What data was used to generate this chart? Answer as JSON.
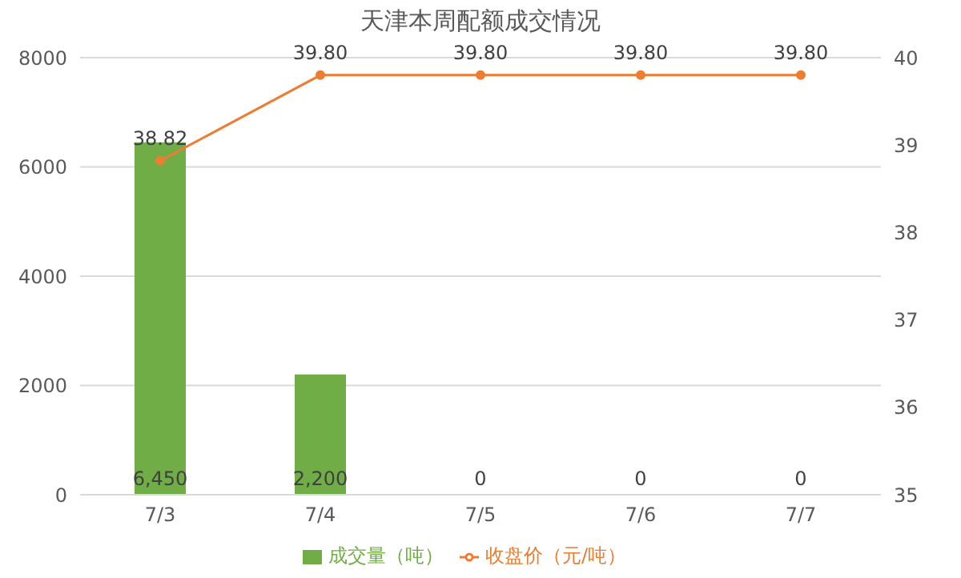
{
  "chart_data": {
    "type": "bar",
    "title": "天津本周配额成交情况",
    "categories": [
      "7/3",
      "7/4",
      "7/5",
      "7/6",
      "7/7"
    ],
    "series": [
      {
        "name": "成交量（吨）",
        "color": "#70ad47",
        "values": [
          6450,
          2200,
          0,
          0,
          0
        ],
        "value_labels": [
          "6,450",
          "2,200",
          "0",
          "0",
          "0"
        ]
      },
      {
        "name": "收盘价（元/吨）",
        "type": "line",
        "axis": "y2",
        "color": "#ed7d31",
        "values": [
          38.82,
          39.8,
          39.8,
          39.8,
          39.8
        ],
        "value_labels": [
          "38.82",
          "39.80",
          "39.80",
          "39.80",
          "39.80"
        ]
      }
    ],
    "ylim": [
      0,
      8000
    ],
    "yticks": [
      0,
      2000,
      4000,
      6000,
      8000
    ],
    "y2lim": [
      35,
      40
    ],
    "y2ticks": [
      35,
      36,
      37,
      38,
      39,
      40
    ],
    "grid": "y",
    "legend": "bottom",
    "marker": "circle"
  }
}
